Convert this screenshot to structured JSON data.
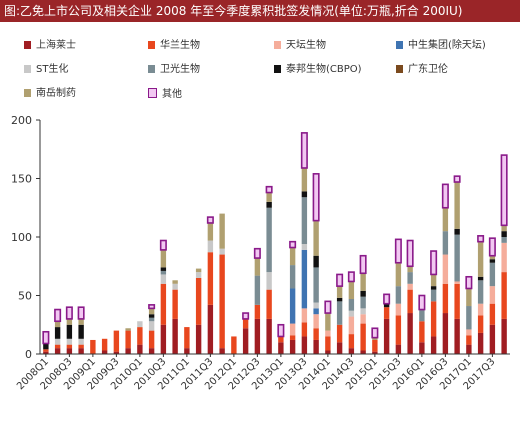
{
  "header": {
    "title": "图:乙免上市公司及相关企业 2008 年至今季度累积批签发情况(单位:万瓶,折合 200IU)"
  },
  "colors": {
    "title_bg": "#9a2528",
    "series": [
      "#a01d22",
      "#e8471e",
      "#f5ad9b",
      "#3f74b2",
      "#c8c8c8",
      "#7a8c93",
      "#111111",
      "#7b4a1e",
      "#b0a070",
      "#f2c8f2"
    ]
  },
  "chart_data": {
    "type": "bar",
    "stacked": true,
    "title": "",
    "xlabel": "",
    "ylabel": "",
    "ylim": [
      0,
      200
    ],
    "yticks": [
      0,
      50,
      100,
      150,
      200
    ],
    "grid": false,
    "legend_position": "top",
    "categories": [
      "2008Q1",
      "2008Q2",
      "2008Q3",
      "2008Q4",
      "2009Q1",
      "2009Q2",
      "2009Q3",
      "2009Q4",
      "2010Q1",
      "2010Q2",
      "2010Q3",
      "2010Q4",
      "2011Q1",
      "2011Q2",
      "2011Q3",
      "2011Q4",
      "2012Q1",
      "2012Q2",
      "2012Q3",
      "2012Q4",
      "2013Q1",
      "2013Q2",
      "2013Q3",
      "2013Q4",
      "2014Q1",
      "2014Q2",
      "2014Q3",
      "2014Q4",
      "2015Q1",
      "2015Q2",
      "2015Q3",
      "2015Q4",
      "2016Q1",
      "2016Q2",
      "2016Q3",
      "2016Q4",
      "2017Q1",
      "2017Q2",
      "2017Q3",
      "2017Q4"
    ],
    "x_tick_labels": [
      "2008Q1",
      "2008Q3",
      "2009Q1",
      "2009Q3",
      "2010Q1",
      "2010Q3",
      "2011Q1",
      "2011Q3",
      "2012Q1",
      "2012Q3",
      "2013Q1",
      "2013Q3",
      "2014Q1",
      "2014Q3",
      "2015Q1",
      "2015Q3",
      "2016Q1",
      "2016Q3",
      "2017Q1",
      "2017Q3"
    ],
    "series": [
      {
        "name": "上海莱士",
        "values": [
          2,
          5,
          5,
          5,
          0,
          3,
          2,
          5,
          8,
          5,
          25,
          30,
          5,
          25,
          42,
          5,
          0,
          22,
          30,
          30,
          10,
          12,
          15,
          12,
          3,
          10,
          5,
          3,
          2,
          30,
          8,
          35,
          10,
          15,
          35,
          30,
          8,
          18,
          25,
          30
        ]
      },
      {
        "name": "华兰生物",
        "values": [
          2,
          3,
          3,
          3,
          12,
          10,
          18,
          15,
          15,
          15,
          35,
          25,
          18,
          40,
          45,
          80,
          15,
          8,
          12,
          25,
          5,
          4,
          12,
          10,
          12,
          15,
          12,
          23,
          10,
          10,
          25,
          20,
          18,
          30,
          25,
          30,
          8,
          15,
          18,
          40
        ]
      },
      {
        "name": "天坛生物",
        "values": [
          0,
          0,
          0,
          0,
          0,
          0,
          0,
          0,
          0,
          0,
          0,
          0,
          0,
          0,
          0,
          0,
          0,
          0,
          0,
          0,
          0,
          10,
          12,
          12,
          5,
          0,
          15,
          8,
          0,
          0,
          10,
          5,
          0,
          0,
          25,
          2,
          5,
          10,
          15,
          25
        ]
      },
      {
        "name": "中生集团(除天坛)",
        "values": [
          0,
          0,
          0,
          0,
          0,
          0,
          0,
          0,
          0,
          0,
          0,
          0,
          0,
          0,
          0,
          0,
          0,
          0,
          0,
          0,
          0,
          30,
          50,
          5,
          0,
          0,
          0,
          0,
          0,
          0,
          0,
          0,
          0,
          0,
          0,
          0,
          0,
          0,
          0,
          0
        ]
      },
      {
        "name": "ST生化",
        "values": [
          0,
          5,
          5,
          5,
          0,
          0,
          0,
          0,
          5,
          8,
          8,
          5,
          0,
          5,
          10,
          5,
          0,
          0,
          0,
          15,
          0,
          0,
          5,
          5,
          0,
          0,
          5,
          5,
          0,
          0,
          0,
          0,
          0,
          0,
          0,
          0,
          0,
          0,
          0,
          0
        ]
      },
      {
        "name": "卫光生物",
        "values": [
          0,
          0,
          0,
          0,
          0,
          0,
          0,
          0,
          0,
          3,
          3,
          0,
          0,
          0,
          0,
          0,
          0,
          0,
          25,
          55,
          0,
          20,
          40,
          30,
          0,
          20,
          10,
          10,
          0,
          0,
          15,
          10,
          10,
          10,
          20,
          40,
          20,
          20,
          20,
          5
        ]
      },
      {
        "name": "泰邦生物(CBPO)",
        "values": [
          5,
          10,
          12,
          12,
          0,
          0,
          0,
          0,
          0,
          3,
          3,
          0,
          0,
          0,
          0,
          0,
          0,
          0,
          0,
          5,
          0,
          0,
          5,
          10,
          0,
          3,
          0,
          5,
          0,
          3,
          0,
          0,
          0,
          3,
          0,
          5,
          0,
          3,
          3,
          5
        ]
      },
      {
        "name": "广东卫伦",
        "values": [
          0,
          0,
          0,
          0,
          0,
          0,
          0,
          0,
          0,
          0,
          0,
          0,
          0,
          0,
          0,
          0,
          0,
          0,
          0,
          0,
          0,
          0,
          0,
          0,
          0,
          0,
          0,
          0,
          0,
          0,
          0,
          0,
          0,
          0,
          0,
          0,
          0,
          0,
          0,
          0
        ]
      },
      {
        "name": "南岳制药",
        "values": [
          0,
          5,
          5,
          5,
          0,
          0,
          0,
          2,
          0,
          5,
          15,
          3,
          0,
          3,
          15,
          30,
          0,
          0,
          15,
          8,
          0,
          15,
          20,
          30,
          15,
          10,
          15,
          15,
          2,
          0,
          20,
          5,
          0,
          10,
          20,
          40,
          15,
          30,
          3,
          5
        ]
      },
      {
        "name": "其他",
        "values": [
          10,
          10,
          10,
          10,
          0,
          0,
          0,
          0,
          0,
          3,
          8,
          0,
          0,
          0,
          5,
          0,
          0,
          5,
          8,
          5,
          10,
          5,
          30,
          40,
          10,
          10,
          8,
          15,
          8,
          8,
          20,
          22,
          12,
          20,
          20,
          5,
          10,
          5,
          15,
          60
        ]
      }
    ]
  }
}
